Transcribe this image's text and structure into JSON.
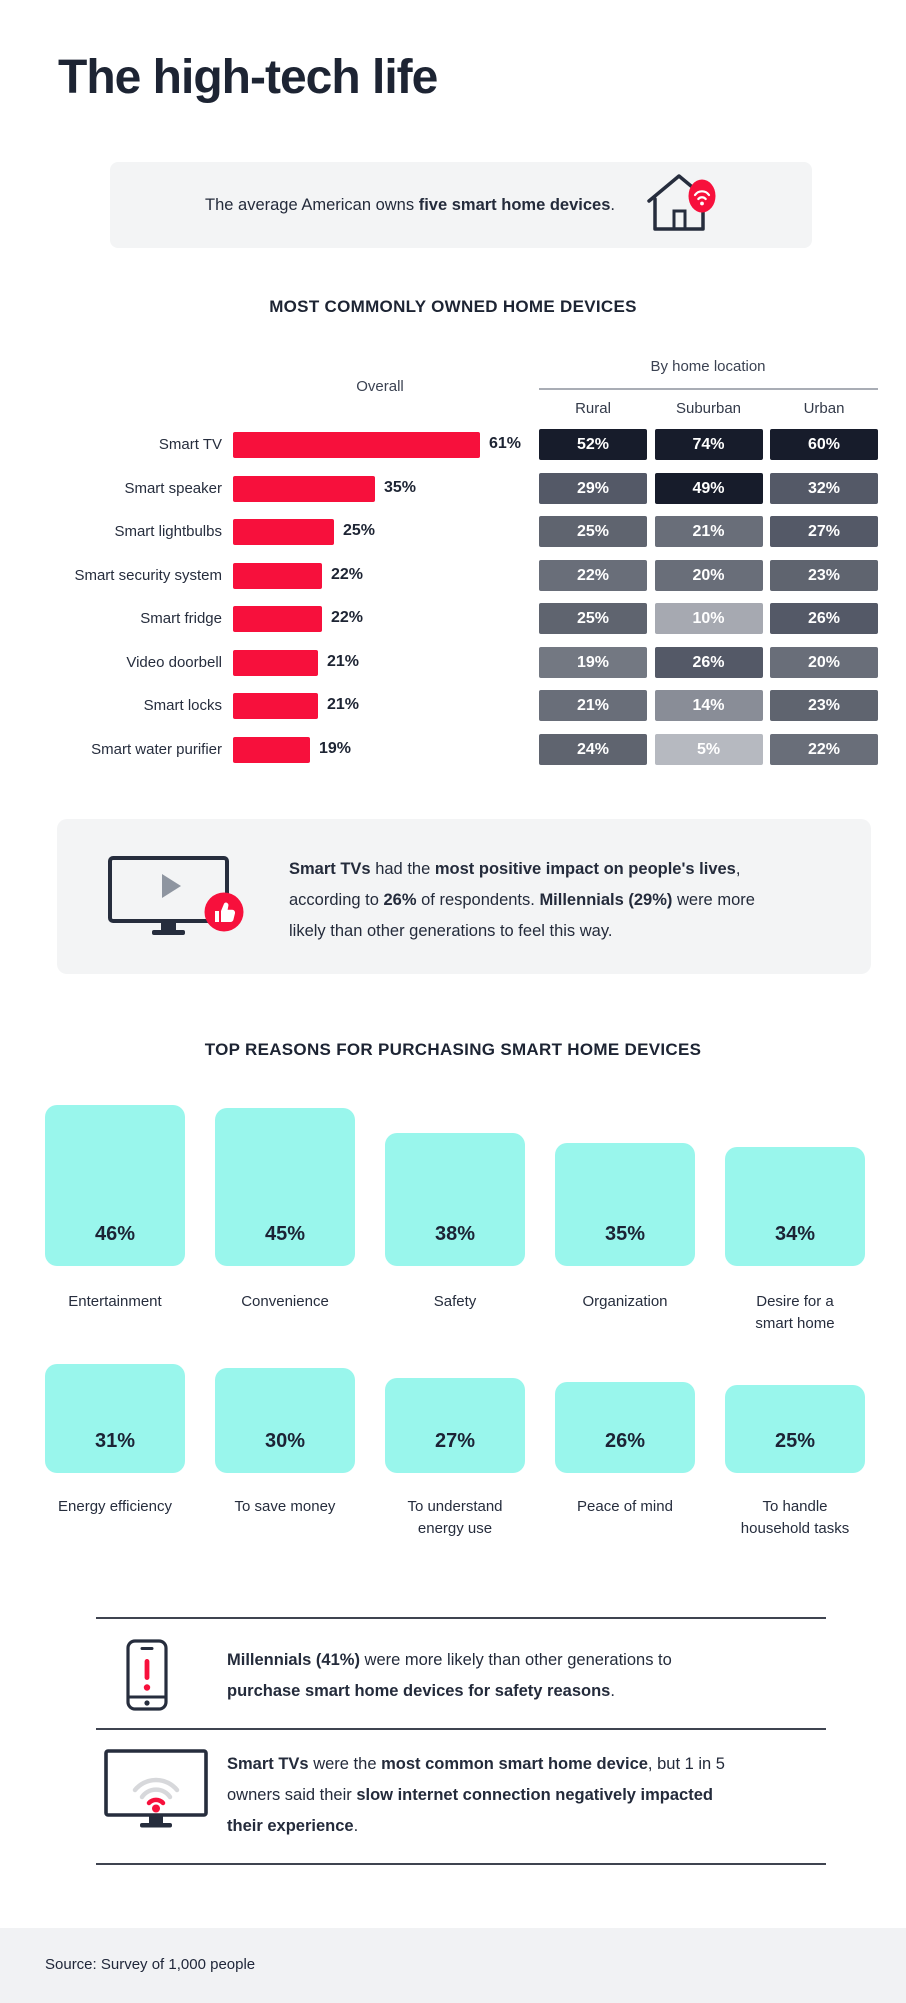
{
  "page": {
    "title": "The high-tech life"
  },
  "colors": {
    "accent_red": "#f7103c",
    "teal": "#99f6ec",
    "dark_navy": "#1d2433",
    "box_bg": "#f3f4f5",
    "footer_bg": "#f1f2f4",
    "cell_darkest": "#171c2b",
    "rule": "#3f4450",
    "play_gray": "#8e95a0",
    "wifi_gray": "#d7d8db"
  },
  "fact_banner": {
    "icon": "house-wifi-icon",
    "segments": [
      {
        "t": "The average American owns ",
        "b": false
      },
      {
        "t": "five smart home devices",
        "b": true
      },
      {
        "t": ".",
        "b": false
      }
    ]
  },
  "owned_devices": {
    "heading": "MOST COMMONLY OWNED HOME DEVICES",
    "overall_label": "Overall",
    "location_label": "By home location",
    "columns": [
      "Rural",
      "Suburban",
      "Urban"
    ],
    "rows": [
      {
        "device": "Smart TV",
        "overall": 61,
        "by_location": [
          52,
          74,
          60
        ]
      },
      {
        "device": "Smart speaker",
        "overall": 35,
        "by_location": [
          29,
          49,
          32
        ]
      },
      {
        "device": "Smart lightbulbs",
        "overall": 25,
        "by_location": [
          25,
          21,
          27
        ]
      },
      {
        "device": "Smart security system",
        "overall": 22,
        "by_location": [
          22,
          20,
          23
        ]
      },
      {
        "device": "Smart fridge",
        "overall": 22,
        "by_location": [
          25,
          10,
          26
        ]
      },
      {
        "device": "Video doorbell",
        "overall": 21,
        "by_location": [
          19,
          26,
          20
        ]
      },
      {
        "device": "Smart locks",
        "overall": 21,
        "by_location": [
          21,
          14,
          23
        ]
      },
      {
        "device": "Smart water purifier",
        "overall": 19,
        "by_location": [
          24,
          5,
          22
        ]
      }
    ]
  },
  "tv_callout": {
    "icon": "tv-play-thumbs-up-icon",
    "lines": [
      [
        {
          "t": "Smart TVs",
          "b": true
        },
        {
          "t": " had the ",
          "b": false
        },
        {
          "t": "most positive impact on people's lives",
          "b": true
        },
        {
          "t": ",",
          "b": false
        }
      ],
      [
        {
          "t": "according to ",
          "b": false
        },
        {
          "t": "26%",
          "b": true
        },
        {
          "t": " of respondents. ",
          "b": false
        },
        {
          "t": "Millennials (29%)",
          "b": true
        },
        {
          "t": " were more",
          "b": false
        }
      ],
      [
        {
          "t": "likely than other generations to feel this way.",
          "b": false
        }
      ]
    ]
  },
  "reasons": {
    "heading": "TOP REASONS FOR PURCHASING SMART HOME DEVICES",
    "rows": [
      [
        {
          "value": 46,
          "label_lines": [
            "Entertainment"
          ]
        },
        {
          "value": 45,
          "label_lines": [
            "Convenience"
          ]
        },
        {
          "value": 38,
          "label_lines": [
            "Safety"
          ]
        },
        {
          "value": 35,
          "label_lines": [
            "Organization"
          ]
        },
        {
          "value": 34,
          "label_lines": [
            "Desire for a",
            "smart home"
          ]
        }
      ],
      [
        {
          "value": 31,
          "label_lines": [
            "Energy efficiency"
          ]
        },
        {
          "value": 30,
          "label_lines": [
            "To save money"
          ]
        },
        {
          "value": 27,
          "label_lines": [
            "To understand",
            "energy use"
          ]
        },
        {
          "value": 26,
          "label_lines": [
            "Peace of mind"
          ]
        },
        {
          "value": 25,
          "label_lines": [
            "To handle",
            "household tasks"
          ]
        }
      ]
    ]
  },
  "notes": [
    {
      "icon": "phone-alert-icon",
      "lines": [
        [
          {
            "t": "Millennials (41%)",
            "b": true
          },
          {
            "t": " were more likely than other generations to",
            "b": false
          }
        ],
        [
          {
            "t": "purchase smart home devices for safety reasons",
            "b": true
          },
          {
            "t": ".",
            "b": false
          }
        ]
      ]
    },
    {
      "icon": "monitor-wifi-icon",
      "lines": [
        [
          {
            "t": "Smart TVs",
            "b": true
          },
          {
            "t": " were the ",
            "b": false
          },
          {
            "t": "most common smart home device",
            "b": true
          },
          {
            "t": ", but 1 in 5",
            "b": false
          }
        ],
        [
          {
            "t": "owners said their ",
            "b": false
          },
          {
            "t": "slow internet connection negatively impacted",
            "b": true
          }
        ],
        [
          {
            "t": "their experience",
            "b": true
          },
          {
            "t": ".",
            "b": false
          }
        ]
      ]
    }
  ],
  "footer": {
    "source": "Source: Survey of 1,000 people"
  },
  "chart_data": [
    {
      "type": "bar",
      "title": "MOST COMMONLY OWNED HOME DEVICES",
      "subtitle": "Overall",
      "orientation": "horizontal",
      "unit": "%",
      "categories": [
        "Smart TV",
        "Smart speaker",
        "Smart lightbulbs",
        "Smart security system",
        "Smart fridge",
        "Video doorbell",
        "Smart locks",
        "Smart water purifier"
      ],
      "values": [
        61,
        35,
        25,
        22,
        22,
        21,
        21,
        19
      ],
      "xlim": [
        0,
        61
      ],
      "bar_color": "#f7103c",
      "grid": false
    },
    {
      "type": "heatmap",
      "title": "By home location",
      "unit": "%",
      "rows": [
        "Smart TV",
        "Smart speaker",
        "Smart lightbulbs",
        "Smart security system",
        "Smart fridge",
        "Video doorbell",
        "Smart locks",
        "Smart water purifier"
      ],
      "columns": [
        "Rural",
        "Suburban",
        "Urban"
      ],
      "values": [
        [
          52,
          74,
          60
        ],
        [
          29,
          49,
          32
        ],
        [
          25,
          21,
          27
        ],
        [
          22,
          20,
          23
        ],
        [
          25,
          10,
          26
        ],
        [
          19,
          26,
          20
        ],
        [
          21,
          14,
          23
        ],
        [
          24,
          5,
          22
        ]
      ],
      "note": "darker cell = higher value"
    },
    {
      "type": "bar",
      "title": "TOP REASONS FOR PURCHASING SMART HOME DEVICES",
      "orientation": "vertical",
      "unit": "%",
      "categories": [
        "Entertainment",
        "Convenience",
        "Safety",
        "Organization",
        "Desire for a smart home",
        "Energy efficiency",
        "To save money",
        "To understand energy use",
        "Peace of mind",
        "To handle household tasks"
      ],
      "values": [
        46,
        45,
        38,
        35,
        34,
        31,
        30,
        27,
        26,
        25
      ],
      "bar_color": "#99f6ec",
      "grid": false
    }
  ]
}
